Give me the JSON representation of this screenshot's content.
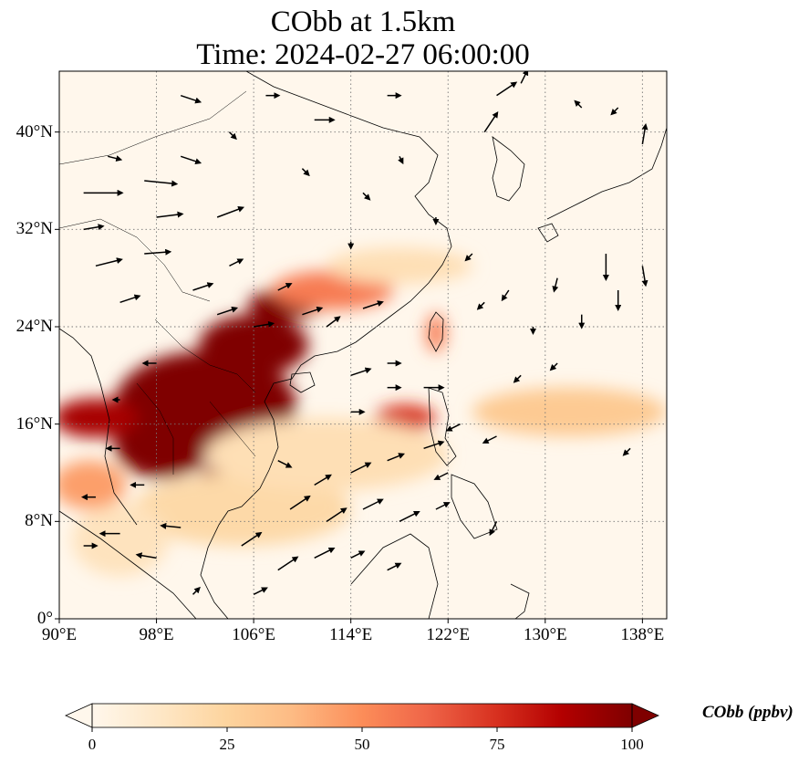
{
  "title": {
    "line1": "CObb at 1.5km",
    "line2": "Time: 2024-02-27 06:00:00"
  },
  "map": {
    "lon_range": [
      90,
      140
    ],
    "lat_range": [
      0,
      45
    ],
    "lat_ticks": [
      {
        "value": 0,
        "label": "0°"
      },
      {
        "value": 8,
        "label": "8°N"
      },
      {
        "value": 16,
        "label": "16°N"
      },
      {
        "value": 24,
        "label": "24°N"
      },
      {
        "value": 32,
        "label": "32°N"
      },
      {
        "value": 40,
        "label": "40°N"
      }
    ],
    "lon_ticks": [
      {
        "value": 90,
        "label": "90°E"
      },
      {
        "value": 98,
        "label": "98°E"
      },
      {
        "value": 106,
        "label": "106°E"
      },
      {
        "value": 114,
        "label": "114°E"
      },
      {
        "value": 122,
        "label": "122°E"
      },
      {
        "value": 130,
        "label": "130°E"
      },
      {
        "value": 138,
        "label": "138°E"
      }
    ],
    "gridlines": true,
    "field_name": "CObb",
    "units": "ppbv",
    "concentration_blobs": [
      {
        "lon": 102.0,
        "lat": 17.5,
        "rlon": 7.5,
        "rlat": 4.5,
        "value": 100
      },
      {
        "lon": 98.5,
        "lat": 14.5,
        "rlon": 4.0,
        "rlat": 3.0,
        "value": 100
      },
      {
        "lon": 106.0,
        "lat": 22.5,
        "rlon": 4.5,
        "rlat": 2.5,
        "value": 100
      },
      {
        "lon": 108.5,
        "lat": 25.8,
        "rlon": 3.0,
        "rlat": 1.2,
        "value": 100
      },
      {
        "lon": 93.0,
        "lat": 16.5,
        "rlon": 3.5,
        "rlat": 1.6,
        "value": 90
      },
      {
        "lon": 104.0,
        "lat": 11.8,
        "rlon": 2.5,
        "rlat": 1.2,
        "value": 95
      },
      {
        "lon": 112.5,
        "lat": 27.0,
        "rlon": 5.0,
        "rlat": 1.6,
        "value": 55
      },
      {
        "lon": 118.5,
        "lat": 16.5,
        "rlon": 2.5,
        "rlat": 1.1,
        "value": 75
      },
      {
        "lon": 121.0,
        "lat": 23.5,
        "rlon": 0.8,
        "rlat": 1.6,
        "value": 55
      },
      {
        "lon": 132.0,
        "lat": 17.0,
        "rlon": 8.0,
        "rlat": 2.0,
        "value": 30
      },
      {
        "lon": 105.0,
        "lat": 9.0,
        "rlon": 9.0,
        "rlat": 3.0,
        "value": 22
      },
      {
        "lon": 112.0,
        "lat": 13.5,
        "rlon": 10.0,
        "rlat": 3.0,
        "value": 18
      },
      {
        "lon": 95.0,
        "lat": 6.5,
        "rlon": 4.0,
        "rlat": 3.0,
        "value": 15
      },
      {
        "lon": 92.5,
        "lat": 11.0,
        "rlon": 3.0,
        "rlat": 2.0,
        "value": 45
      },
      {
        "lon": 118.0,
        "lat": 29.0,
        "rlon": 6.0,
        "rlat": 1.5,
        "value": 18
      }
    ],
    "wind_vectors": [
      {
        "lon": 92,
        "lat": 35,
        "u": 6,
        "v": 0
      },
      {
        "lon": 92,
        "lat": 32,
        "u": 3,
        "v": 0.5
      },
      {
        "lon": 93,
        "lat": 29,
        "u": 4,
        "v": 1
      },
      {
        "lon": 94,
        "lat": 38,
        "u": 2,
        "v": -0.5
      },
      {
        "lon": 95,
        "lat": 26,
        "u": 3,
        "v": 1
      },
      {
        "lon": 97,
        "lat": 36,
        "u": 5,
        "v": -0.5
      },
      {
        "lon": 97,
        "lat": 30,
        "u": 4,
        "v": 0.3
      },
      {
        "lon": 98,
        "lat": 33,
        "u": 4,
        "v": 0.5
      },
      {
        "lon": 100,
        "lat": 38,
        "u": 3,
        "v": -1
      },
      {
        "lon": 101,
        "lat": 27,
        "u": 3,
        "v": 1
      },
      {
        "lon": 103,
        "lat": 33,
        "u": 4,
        "v": 1.5
      },
      {
        "lon": 103,
        "lat": 25,
        "u": 3,
        "v": 1
      },
      {
        "lon": 104,
        "lat": 29,
        "u": 2,
        "v": 1
      },
      {
        "lon": 106,
        "lat": 24,
        "u": 3,
        "v": 0.5
      },
      {
        "lon": 108,
        "lat": 27,
        "u": 2,
        "v": 1
      },
      {
        "lon": 110,
        "lat": 25,
        "u": 3,
        "v": 1
      },
      {
        "lon": 112,
        "lat": 24,
        "u": 2,
        "v": 1.5
      },
      {
        "lon": 115,
        "lat": 25.5,
        "u": 3,
        "v": 1
      },
      {
        "lon": 114,
        "lat": 20,
        "u": 3,
        "v": 1
      },
      {
        "lon": 117,
        "lat": 21,
        "u": 2,
        "v": 0
      },
      {
        "lon": 114,
        "lat": 17,
        "u": 2,
        "v": 0
      },
      {
        "lon": 117,
        "lat": 19,
        "u": 2,
        "v": 0
      },
      {
        "lon": 120,
        "lat": 19,
        "u": 3,
        "v": 0
      },
      {
        "lon": 108,
        "lat": 13,
        "u": 2,
        "v": -1
      },
      {
        "lon": 111,
        "lat": 11,
        "u": 2.5,
        "v": 1.5
      },
      {
        "lon": 114,
        "lat": 12,
        "u": 3,
        "v": 1.5
      },
      {
        "lon": 117,
        "lat": 13,
        "u": 2.5,
        "v": 1
      },
      {
        "lon": 120,
        "lat": 14,
        "u": 3,
        "v": 1
      },
      {
        "lon": 109,
        "lat": 9,
        "u": 3,
        "v": 2
      },
      {
        "lon": 112,
        "lat": 8,
        "u": 3,
        "v": 2
      },
      {
        "lon": 115,
        "lat": 9,
        "u": 3,
        "v": 1.5
      },
      {
        "lon": 118,
        "lat": 8,
        "u": 3,
        "v": 1.5
      },
      {
        "lon": 121,
        "lat": 9,
        "u": 2,
        "v": 1
      },
      {
        "lon": 105,
        "lat": 6,
        "u": 3,
        "v": 2
      },
      {
        "lon": 108,
        "lat": 4,
        "u": 3,
        "v": 2
      },
      {
        "lon": 111,
        "lat": 5,
        "u": 3,
        "v": 1.5
      },
      {
        "lon": 114,
        "lat": 5,
        "u": 2,
        "v": 1
      },
      {
        "lon": 117,
        "lat": 4,
        "u": 2,
        "v": 1
      },
      {
        "lon": 106,
        "lat": 2,
        "u": 2,
        "v": 1
      },
      {
        "lon": 101,
        "lat": 2,
        "u": 1,
        "v": 1
      },
      {
        "lon": 98,
        "lat": 5,
        "u": -3,
        "v": 0.5
      },
      {
        "lon": 95,
        "lat": 7,
        "u": -3,
        "v": 0
      },
      {
        "lon": 92,
        "lat": 6,
        "u": 2,
        "v": 0
      },
      {
        "lon": 100,
        "lat": 7.5,
        "u": -3,
        "v": 0.3
      },
      {
        "lon": 97,
        "lat": 11,
        "u": -2,
        "v": 0
      },
      {
        "lon": 93,
        "lat": 10,
        "u": -2,
        "v": 0
      },
      {
        "lon": 95,
        "lat": 14,
        "u": -2,
        "v": 0
      },
      {
        "lon": 98,
        "lat": 21,
        "u": -2,
        "v": 0
      },
      {
        "lon": 95,
        "lat": 18,
        "u": -1,
        "v": 0
      },
      {
        "lon": 126,
        "lat": 43,
        "u": 3,
        "v": 2
      },
      {
        "lon": 125,
        "lat": 40,
        "u": 2,
        "v": 3
      },
      {
        "lon": 128,
        "lat": 44,
        "u": 1,
        "v": 2
      },
      {
        "lon": 133,
        "lat": 42,
        "u": -1,
        "v": 1
      },
      {
        "lon": 136,
        "lat": 42,
        "u": -1,
        "v": -1
      },
      {
        "lon": 138,
        "lat": 39,
        "u": 0.5,
        "v": 3
      },
      {
        "lon": 135,
        "lat": 30,
        "u": 0,
        "v": -4
      },
      {
        "lon": 136,
        "lat": 27,
        "u": 0,
        "v": -3
      },
      {
        "lon": 138,
        "lat": 29,
        "u": 0.5,
        "v": -3
      },
      {
        "lon": 131,
        "lat": 28,
        "u": -0.5,
        "v": -2
      },
      {
        "lon": 133,
        "lat": 25,
        "u": 0,
        "v": -2
      },
      {
        "lon": 129,
        "lat": 24,
        "u": 0,
        "v": -1
      },
      {
        "lon": 127,
        "lat": 27,
        "u": -1,
        "v": -1.5
      },
      {
        "lon": 124,
        "lat": 30,
        "u": -1,
        "v": -1
      },
      {
        "lon": 125,
        "lat": 26,
        "u": -1,
        "v": -1
      },
      {
        "lon": 128,
        "lat": 20,
        "u": -1,
        "v": -1
      },
      {
        "lon": 131,
        "lat": 21,
        "u": -1,
        "v": -1
      },
      {
        "lon": 123,
        "lat": 16,
        "u": -2,
        "v": -1
      },
      {
        "lon": 126,
        "lat": 15,
        "u": -2,
        "v": -1
      },
      {
        "lon": 122,
        "lat": 12,
        "u": -2,
        "v": -1
      },
      {
        "lon": 126,
        "lat": 8,
        "u": -1,
        "v": -2
      },
      {
        "lon": 137,
        "lat": 14,
        "u": -1,
        "v": -1
      },
      {
        "lon": 100,
        "lat": 43,
        "u": 3,
        "v": -1
      },
      {
        "lon": 107,
        "lat": 43,
        "u": 2,
        "v": 0
      },
      {
        "lon": 111,
        "lat": 41,
        "u": 3,
        "v": 0
      },
      {
        "lon": 117,
        "lat": 43,
        "u": 2,
        "v": 0
      },
      {
        "lon": 104,
        "lat": 40,
        "u": 1,
        "v": -1
      },
      {
        "lon": 110,
        "lat": 37,
        "u": 1,
        "v": -1
      },
      {
        "lon": 115,
        "lat": 35,
        "u": 1,
        "v": -1
      },
      {
        "lon": 118,
        "lat": 38,
        "u": 0.5,
        "v": -1
      },
      {
        "lon": 121,
        "lat": 33,
        "u": 0,
        "v": -1
      },
      {
        "lon": 114,
        "lat": 31,
        "u": 0,
        "v": -1
      }
    ]
  },
  "colorbar": {
    "title": "CObb (ppbv)",
    "min": 0,
    "max": 100,
    "ticks": [
      {
        "value": 0,
        "label": "0"
      },
      {
        "value": 25,
        "label": "25"
      },
      {
        "value": 50,
        "label": "50"
      },
      {
        "value": 75,
        "label": "75"
      },
      {
        "value": 100,
        "label": "100"
      }
    ],
    "colormap": "OrRd",
    "extend": "both"
  }
}
